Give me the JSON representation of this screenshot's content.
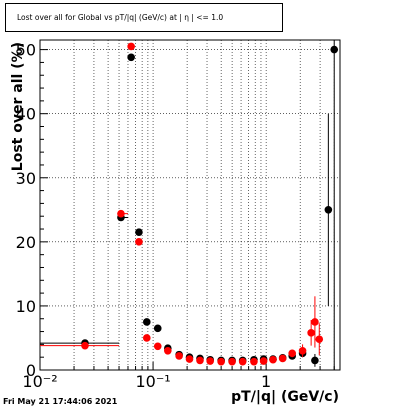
{
  "title": "Lost over all for Global vs pT/|q| (GeV/c) at | η | <= 1.0",
  "footer": "Fri May 21 17:44:06 2021",
  "chart_data": {
    "type": "scatter",
    "title": "Lost over all for Global vs pT/|q| (GeV/c) at | η | <= 1.0",
    "xlabel": "pT/|q| (GeV/c)",
    "ylabel": "Lost over all (%)",
    "xscale": "log",
    "xlim": [
      0.01,
      4.5
    ],
    "ylim": [
      0,
      51.5
    ],
    "grid": true,
    "x_tick_labels": [
      "10⁻²",
      "10⁻¹",
      "1"
    ],
    "x_ticks": [
      0.01,
      0.1,
      1
    ],
    "y_ticks": [
      0,
      10,
      20,
      30,
      40,
      50
    ],
    "y_tick_labels": [
      "0",
      "10",
      "20",
      "30",
      "40",
      "50"
    ],
    "series": [
      {
        "color": "#000000",
        "points": [
          {
            "x": 0.025,
            "y": 4.2,
            "xlo": 0.01,
            "xhi": 0.05,
            "err": 0.3
          },
          {
            "x": 0.052,
            "y": 23.8,
            "xlo": 0.05,
            "xhi": 0.06,
            "err": 0.5
          },
          {
            "x": 0.064,
            "y": 48.8,
            "err": 0.5
          },
          {
            "x": 0.075,
            "y": 21.5,
            "err": 0.5
          },
          {
            "x": 0.088,
            "y": 7.5,
            "err": 0.4
          },
          {
            "x": 0.11,
            "y": 6.5,
            "err": 0.3
          },
          {
            "x": 0.135,
            "y": 3.4,
            "err": 0.2
          },
          {
            "x": 0.17,
            "y": 2.4,
            "err": 0.2
          },
          {
            "x": 0.21,
            "y": 2.0,
            "err": 0.2
          },
          {
            "x": 0.26,
            "y": 1.8,
            "err": 0.2
          },
          {
            "x": 0.32,
            "y": 1.6,
            "err": 0.2
          },
          {
            "x": 0.4,
            "y": 1.5,
            "err": 0.2
          },
          {
            "x": 0.5,
            "y": 1.5,
            "err": 0.2
          },
          {
            "x": 0.62,
            "y": 1.5,
            "err": 0.2
          },
          {
            "x": 0.78,
            "y": 1.6,
            "err": 0.2
          },
          {
            "x": 0.95,
            "y": 1.7,
            "err": 0.2
          },
          {
            "x": 1.15,
            "y": 1.7,
            "err": 0.3
          },
          {
            "x": 1.4,
            "y": 1.9,
            "err": 0.3
          },
          {
            "x": 1.7,
            "y": 2.2,
            "err": 0.4
          },
          {
            "x": 2.1,
            "y": 2.6,
            "err": 0.6
          },
          {
            "x": 2.7,
            "y": 1.5,
            "err": 1.0
          },
          {
            "x": 3.55,
            "y": 25.0,
            "err": 15.0
          },
          {
            "x": 4.0,
            "y": 50.0,
            "err": 50.0
          }
        ]
      },
      {
        "color": "#ff0000",
        "points": [
          {
            "x": 0.025,
            "y": 3.8,
            "xlo": 0.01,
            "xhi": 0.05,
            "err": 0.3
          },
          {
            "x": 0.052,
            "y": 24.4,
            "xlo": 0.05,
            "xhi": 0.06,
            "err": 0.5
          },
          {
            "x": 0.064,
            "y": 50.5,
            "err": 0.5
          },
          {
            "x": 0.075,
            "y": 20.0,
            "err": 0.5
          },
          {
            "x": 0.088,
            "y": 5.0,
            "err": 0.4
          },
          {
            "x": 0.11,
            "y": 3.7,
            "err": 0.3
          },
          {
            "x": 0.135,
            "y": 3.0,
            "err": 0.2
          },
          {
            "x": 0.17,
            "y": 2.2,
            "err": 0.2
          },
          {
            "x": 0.21,
            "y": 1.7,
            "err": 0.2
          },
          {
            "x": 0.26,
            "y": 1.5,
            "err": 0.2
          },
          {
            "x": 0.32,
            "y": 1.4,
            "err": 0.2
          },
          {
            "x": 0.4,
            "y": 1.3,
            "err": 0.2
          },
          {
            "x": 0.5,
            "y": 1.3,
            "err": 0.2
          },
          {
            "x": 0.62,
            "y": 1.3,
            "err": 0.2
          },
          {
            "x": 0.78,
            "y": 1.3,
            "err": 0.2
          },
          {
            "x": 0.95,
            "y": 1.4,
            "err": 0.2
          },
          {
            "x": 1.15,
            "y": 1.6,
            "err": 0.3
          },
          {
            "x": 1.4,
            "y": 1.8,
            "err": 0.4
          },
          {
            "x": 1.7,
            "y": 2.6,
            "err": 0.6
          },
          {
            "x": 2.1,
            "y": 3.0,
            "err": 1.0
          },
          {
            "x": 2.5,
            "y": 5.8,
            "err": 2.0
          },
          {
            "x": 2.7,
            "y": 7.5,
            "err": 4.0
          },
          {
            "x": 2.95,
            "y": 4.8,
            "err": 2.5
          }
        ]
      }
    ]
  }
}
